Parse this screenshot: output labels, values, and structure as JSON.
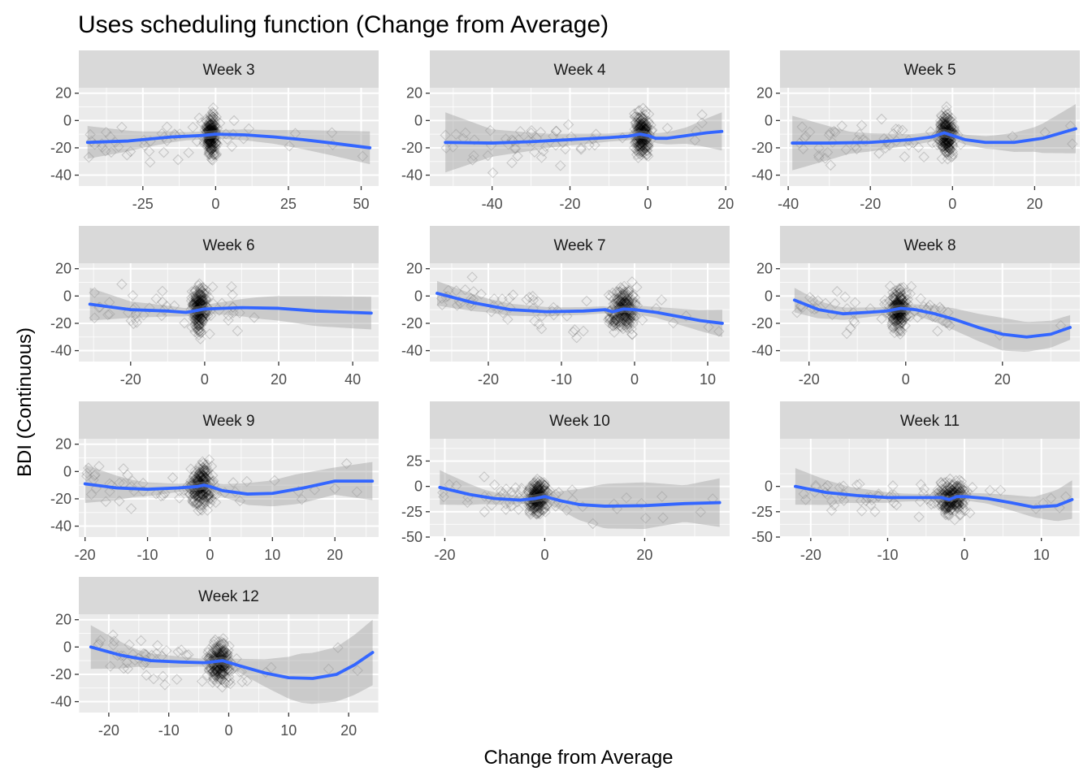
{
  "chart_data": {
    "type": "scatter",
    "title": "Uses scheduling function (Change from Average)",
    "xlabel": "Change from Average",
    "ylabel": "BDI (Continuous)",
    "grid": true,
    "legend": "none",
    "colors": {
      "panel_bg": "#ebebeb",
      "strip_bg": "#d9d9d9",
      "grid": "#ffffff",
      "points": "#000000",
      "smooth_line": "#3366ff",
      "ribbon": "#999999"
    },
    "panels": [
      {
        "label": "Week 3",
        "xlim": [
          -47,
          56
        ],
        "ylim": [
          -48,
          24
        ],
        "x_ticks": [
          -25,
          0,
          25,
          50
        ],
        "x_tick_labels": [
          "-25",
          "0",
          "25",
          "50"
        ],
        "y_ticks": [
          -40,
          -20,
          0,
          20
        ],
        "y_tick_labels": [
          "-40",
          "-20",
          "0",
          "20"
        ],
        "smooth": [
          [
            -44,
            -16
          ],
          [
            -30,
            -15
          ],
          [
            -15,
            -12
          ],
          [
            -5,
            -11
          ],
          [
            0,
            -10
          ],
          [
            10,
            -10.5
          ],
          [
            20,
            -12
          ],
          [
            30,
            -14
          ],
          [
            40,
            -16.5
          ],
          [
            53,
            -20
          ]
        ],
        "band_half": [
          [
            -44,
            12
          ],
          [
            -25,
            6
          ],
          [
            -10,
            3
          ],
          [
            0,
            3
          ],
          [
            20,
            5
          ],
          [
            35,
            8
          ],
          [
            53,
            12
          ]
        ]
      },
      {
        "label": "Week 4",
        "xlim": [
          -56,
          21
        ],
        "ylim": [
          -48,
          24
        ],
        "x_ticks": [
          -40,
          -20,
          0,
          20
        ],
        "x_tick_labels": [
          "-40",
          "-20",
          "0",
          "20"
        ],
        "y_ticks": [
          -40,
          -20,
          0,
          20
        ],
        "y_tick_labels": [
          "-40",
          "-20",
          "0",
          "20"
        ],
        "smooth": [
          [
            -52,
            -16
          ],
          [
            -40,
            -16.5
          ],
          [
            -30,
            -15.5
          ],
          [
            -20,
            -14
          ],
          [
            -10,
            -12.5
          ],
          [
            -5,
            -11.5
          ],
          [
            -2,
            -10
          ],
          [
            0,
            -11
          ],
          [
            2,
            -13
          ],
          [
            5,
            -13
          ],
          [
            10,
            -11
          ],
          [
            15,
            -9
          ],
          [
            19,
            -8
          ]
        ],
        "band_half": [
          [
            -52,
            22
          ],
          [
            -40,
            10
          ],
          [
            -25,
            5
          ],
          [
            -10,
            3
          ],
          [
            0,
            3
          ],
          [
            10,
            6
          ],
          [
            19,
            14
          ]
        ]
      },
      {
        "label": "Week 5",
        "xlim": [
          -42,
          31
        ],
        "ylim": [
          -48,
          24
        ],
        "x_ticks": [
          -40,
          -20,
          0,
          20
        ],
        "x_tick_labels": [
          "-40",
          "-20",
          "0",
          "20"
        ],
        "y_ticks": [
          -40,
          -20,
          0,
          20
        ],
        "y_tick_labels": [
          "-40",
          "-20",
          "0",
          "20"
        ],
        "smooth": [
          [
            -39,
            -16.5
          ],
          [
            -30,
            -16.5
          ],
          [
            -20,
            -16
          ],
          [
            -10,
            -14
          ],
          [
            -5,
            -12
          ],
          [
            -2,
            -9
          ],
          [
            0,
            -11
          ],
          [
            3,
            -14
          ],
          [
            8,
            -16
          ],
          [
            15,
            -16
          ],
          [
            22,
            -13
          ],
          [
            30,
            -6
          ]
        ],
        "band_half": [
          [
            -39,
            20
          ],
          [
            -25,
            8
          ],
          [
            -10,
            4
          ],
          [
            0,
            3
          ],
          [
            10,
            5
          ],
          [
            20,
            9
          ],
          [
            30,
            18
          ]
        ]
      },
      {
        "label": "Week 6",
        "xlim": [
          -34,
          47
        ],
        "ylim": [
          -48,
          24
        ],
        "x_ticks": [
          -20,
          0,
          20,
          40
        ],
        "x_tick_labels": [
          "-20",
          "0",
          "20",
          "40"
        ],
        "y_ticks": [
          -40,
          -20,
          0,
          20
        ],
        "y_tick_labels": [
          "-40",
          "-20",
          "0",
          "20"
        ],
        "smooth": [
          [
            -31,
            -6
          ],
          [
            -20,
            -10
          ],
          [
            -10,
            -11
          ],
          [
            -5,
            -12
          ],
          [
            -2,
            -10.5
          ],
          [
            0,
            -9.5
          ],
          [
            10,
            -8.5
          ],
          [
            20,
            -9
          ],
          [
            30,
            -11
          ],
          [
            45,
            -12.5
          ]
        ],
        "band_half": [
          [
            -31,
            12
          ],
          [
            -20,
            6
          ],
          [
            -5,
            3
          ],
          [
            0,
            3
          ],
          [
            15,
            8
          ],
          [
            30,
            11
          ],
          [
            45,
            12
          ]
        ]
      },
      {
        "label": "Week 7",
        "xlim": [
          -28,
          13
        ],
        "ylim": [
          -48,
          24
        ],
        "x_ticks": [
          -20,
          -10,
          0,
          10
        ],
        "x_tick_labels": [
          "-20",
          "-10",
          "0",
          "10"
        ],
        "y_ticks": [
          -40,
          -20,
          0,
          20
        ],
        "y_tick_labels": [
          "-40",
          "-20",
          "0",
          "20"
        ],
        "smooth": [
          [
            -27,
            2
          ],
          [
            -22,
            -5
          ],
          [
            -17,
            -10
          ],
          [
            -12,
            -11.5
          ],
          [
            -7,
            -11
          ],
          [
            -4,
            -10
          ],
          [
            -3,
            -11.5
          ],
          [
            -1.5,
            -9.5
          ],
          [
            0,
            -10
          ],
          [
            3,
            -12
          ],
          [
            6,
            -15
          ],
          [
            9,
            -18
          ],
          [
            12,
            -20
          ]
        ],
        "band_half": [
          [
            -27,
            9
          ],
          [
            -20,
            5
          ],
          [
            -10,
            3
          ],
          [
            -2,
            2.5
          ],
          [
            3,
            4
          ],
          [
            8,
            7
          ],
          [
            12,
            10
          ]
        ]
      },
      {
        "label": "Week 8",
        "xlim": [
          -26,
          36
        ],
        "ylim": [
          -48,
          24
        ],
        "x_ticks": [
          -20,
          0,
          20
        ],
        "x_tick_labels": [
          "-20",
          "0",
          "20"
        ],
        "y_ticks": [
          -40,
          -20,
          0,
          20
        ],
        "y_tick_labels": [
          "-40",
          "-20",
          "0",
          "20"
        ],
        "smooth": [
          [
            -23,
            -3
          ],
          [
            -18,
            -10
          ],
          [
            -13,
            -13
          ],
          [
            -8,
            -12
          ],
          [
            -4,
            -11
          ],
          [
            -1,
            -9
          ],
          [
            2,
            -10
          ],
          [
            6,
            -13
          ],
          [
            10,
            -17
          ],
          [
            15,
            -23
          ],
          [
            20,
            -28
          ],
          [
            25,
            -30
          ],
          [
            30,
            -28
          ],
          [
            34,
            -23
          ]
        ],
        "band_half": [
          [
            -23,
            9
          ],
          [
            -15,
            5
          ],
          [
            -5,
            3
          ],
          [
            0,
            3
          ],
          [
            10,
            8
          ],
          [
            20,
            12
          ],
          [
            34,
            9
          ]
        ]
      },
      {
        "label": "Week 9",
        "xlim": [
          -21,
          27
        ],
        "ylim": [
          -48,
          24
        ],
        "x_ticks": [
          -20,
          -10,
          0,
          10,
          20
        ],
        "x_tick_labels": [
          "-20",
          "-10",
          "0",
          "10",
          "20"
        ],
        "y_ticks": [
          -40,
          -20,
          0,
          20
        ],
        "y_tick_labels": [
          "-40",
          "-20",
          "0",
          "20"
        ],
        "smooth": [
          [
            -20,
            -9
          ],
          [
            -15,
            -12
          ],
          [
            -10,
            -13
          ],
          [
            -5,
            -12
          ],
          [
            -2,
            -11
          ],
          [
            -1,
            -10
          ],
          [
            0,
            -11
          ],
          [
            2,
            -14
          ],
          [
            6,
            -16.5
          ],
          [
            10,
            -16
          ],
          [
            15,
            -12
          ],
          [
            20,
            -7
          ],
          [
            26,
            -7
          ]
        ],
        "band_half": [
          [
            -20,
            14
          ],
          [
            -12,
            6
          ],
          [
            -5,
            3
          ],
          [
            0,
            3
          ],
          [
            6,
            8
          ],
          [
            14,
            11
          ],
          [
            20,
            10
          ],
          [
            26,
            14
          ]
        ]
      },
      {
        "label": "Week 10",
        "xlim": [
          -23,
          37
        ],
        "ylim": [
          -50,
          47
        ],
        "x_ticks": [
          -20,
          0,
          20
        ],
        "x_tick_labels": [
          "-20",
          "0",
          "20"
        ],
        "y_ticks": [
          -50,
          -25,
          0,
          25
        ],
        "y_tick_labels": [
          "-50",
          "-25",
          "0",
          "25"
        ],
        "smooth": [
          [
            -21,
            -1
          ],
          [
            -15,
            -8
          ],
          [
            -10,
            -12
          ],
          [
            -5,
            -13.5
          ],
          [
            -2,
            -12
          ],
          [
            0,
            -10
          ],
          [
            3,
            -14
          ],
          [
            7,
            -18
          ],
          [
            12,
            -19.5
          ],
          [
            20,
            -19
          ],
          [
            28,
            -17
          ],
          [
            35,
            -16
          ]
        ],
        "band_half": [
          [
            -21,
            17
          ],
          [
            -12,
            7
          ],
          [
            -5,
            4
          ],
          [
            0,
            4
          ],
          [
            6,
            14
          ],
          [
            12,
            22
          ],
          [
            20,
            23
          ],
          [
            28,
            18
          ],
          [
            35,
            24
          ]
        ]
      },
      {
        "label": "Week 11",
        "xlim": [
          -24,
          15
        ],
        "ylim": [
          -50,
          47
        ],
        "x_ticks": [
          -20,
          -10,
          0,
          10
        ],
        "x_tick_labels": [
          "-20",
          "-10",
          "0",
          "10"
        ],
        "y_ticks": [
          -50,
          -25,
          0
        ],
        "y_tick_labels": [
          "-50",
          "-25",
          "0"
        ],
        "smooth": [
          [
            -22,
            0
          ],
          [
            -18,
            -6
          ],
          [
            -14,
            -9
          ],
          [
            -10,
            -11
          ],
          [
            -6,
            -11
          ],
          [
            -3,
            -11
          ],
          [
            -2,
            -13
          ],
          [
            -1,
            -10
          ],
          [
            0,
            -10
          ],
          [
            3,
            -12
          ],
          [
            6,
            -16
          ],
          [
            9,
            -20.5
          ],
          [
            12,
            -19
          ],
          [
            14,
            -13
          ]
        ],
        "band_half": [
          [
            -22,
            18
          ],
          [
            -15,
            8
          ],
          [
            -8,
            4
          ],
          [
            -2,
            3
          ],
          [
            3,
            5
          ],
          [
            9,
            10
          ],
          [
            14,
            19
          ]
        ]
      },
      {
        "label": "Week 12",
        "xlim": [
          -25,
          25
        ],
        "ylim": [
          -48,
          24
        ],
        "x_ticks": [
          -20,
          -10,
          0,
          10,
          20
        ],
        "x_tick_labels": [
          "-20",
          "-10",
          "0",
          "10",
          "20"
        ],
        "y_ticks": [
          -40,
          -20,
          0,
          20
        ],
        "y_tick_labels": [
          "-40",
          "-20",
          "0",
          "20"
        ],
        "smooth": [
          [
            -23,
            0
          ],
          [
            -18,
            -6
          ],
          [
            -13,
            -10
          ],
          [
            -8,
            -11
          ],
          [
            -4,
            -11.5
          ],
          [
            -1,
            -10
          ],
          [
            2,
            -14
          ],
          [
            6,
            -19
          ],
          [
            10,
            -22.5
          ],
          [
            14,
            -23
          ],
          [
            18,
            -20
          ],
          [
            21,
            -13
          ],
          [
            24,
            -4
          ]
        ],
        "band_half": [
          [
            -23,
            16
          ],
          [
            -15,
            6
          ],
          [
            -5,
            3
          ],
          [
            0,
            3
          ],
          [
            6,
            10
          ],
          [
            12,
            18
          ],
          [
            18,
            20
          ],
          [
            24,
            24
          ]
        ]
      }
    ]
  }
}
